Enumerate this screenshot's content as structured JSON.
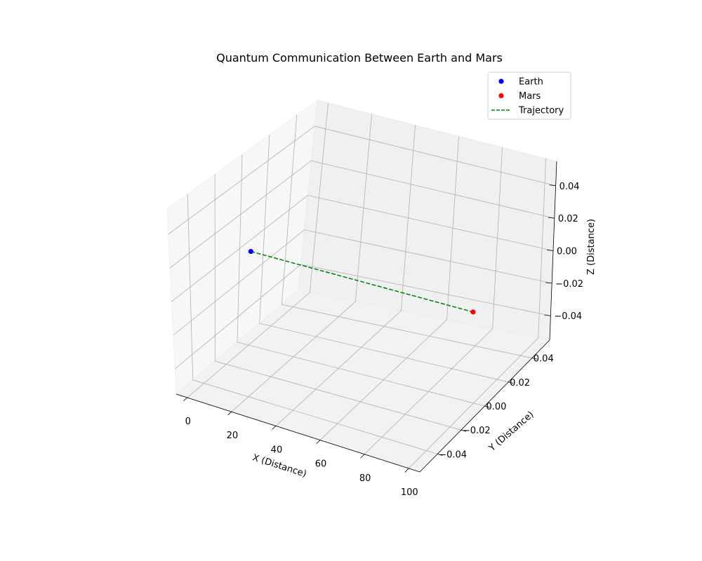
{
  "chart_data": {
    "type": "scatter",
    "projection": "3d",
    "title": "Quantum Communication Between Earth and Mars",
    "xlabel": "X (Distance)",
    "ylabel": "Y (Distance)",
    "zlabel": "Z (Distance)",
    "xlim": [
      -5,
      105
    ],
    "ylim": [
      -0.055,
      0.055
    ],
    "zlim": [
      -0.055,
      0.055
    ],
    "xticks": [
      0,
      20,
      40,
      60,
      80,
      100
    ],
    "xtick_labels": [
      "0",
      "20",
      "40",
      "60",
      "80",
      "100"
    ],
    "yticks": [
      -0.04,
      -0.02,
      0,
      0.02,
      0.04
    ],
    "ytick_labels": [
      "−0.04",
      "−0.02",
      "0.00",
      "0.02",
      "0.04"
    ],
    "zticks": [
      -0.04,
      -0.02,
      0,
      0.02,
      0.04
    ],
    "ztick_labels": [
      "−0.04",
      "−0.02",
      "0.00",
      "0.02",
      "0.04"
    ],
    "grid": true,
    "legend_position": "top-right",
    "series": [
      {
        "name": "Earth",
        "kind": "scatter",
        "color": "#0000ff",
        "points": [
          [
            0,
            0,
            0
          ]
        ]
      },
      {
        "name": "Mars",
        "kind": "scatter",
        "color": "#ff0000",
        "points": [
          [
            100,
            0,
            0
          ]
        ]
      },
      {
        "name": "Trajectory",
        "kind": "line",
        "style": "dashed",
        "color": "#008000",
        "points": [
          [
            0,
            0,
            0
          ],
          [
            100,
            0,
            0
          ]
        ]
      }
    ]
  }
}
